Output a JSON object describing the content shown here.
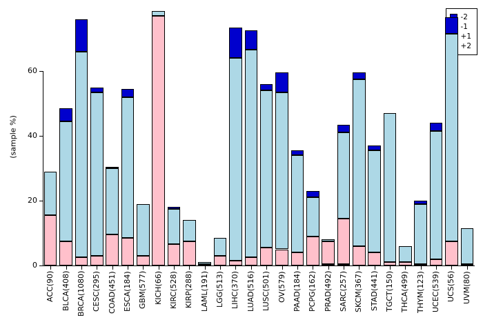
{
  "figure": {
    "ylabel": "(sample %)"
  },
  "legend": {
    "position": "top-right",
    "items": [
      {
        "label": "-2",
        "color": "#0000CD"
      },
      {
        "label": "-1",
        "color": "#ADD8E6"
      },
      {
        "label": "+1",
        "color": "#FFC0CB"
      },
      {
        "label": "+2",
        "color": "#E60000"
      }
    ]
  },
  "chart_data": {
    "type": "bar",
    "stacked": true,
    "title": "",
    "xlabel": "",
    "ylabel": "(sample %)",
    "ylim": [
      0,
      80
    ],
    "yticks": [
      0,
      20,
      40,
      60
    ],
    "grid": false,
    "legend_position": "top-right",
    "categories": [
      "ACC(90)",
      "BLCA(408)",
      "BRCA(1080)",
      "CESC(295)",
      "COAD(451)",
      "ESCA(184)",
      "GBM(577)",
      "KICH(66)",
      "KIRC(528)",
      "KIRP(288)",
      "LAML(191)",
      "LGG(513)",
      "LIHC(370)",
      "LUAD(516)",
      "LUSC(501)",
      "OV(579)",
      "PAAD(184)",
      "PCPG(162)",
      "PRAD(492)",
      "SARC(257)",
      "SKCM(367)",
      "STAD(441)",
      "TGCT(150)",
      "THCA(499)",
      "THYM(123)",
      "UCEC(539)",
      "UCS(56)",
      "UVM(80)"
    ],
    "stack_order_bottom_to_top": [
      "+2",
      "+1",
      "-1",
      "-2"
    ],
    "series": [
      {
        "name": "+2",
        "color": "#E60000",
        "values": [
          0,
          0,
          0,
          0,
          0,
          0,
          0,
          0,
          0,
          0,
          0,
          0,
          0,
          0,
          0,
          0,
          0,
          0,
          0.5,
          0.5,
          0,
          0,
          0,
          0,
          0,
          0,
          0,
          0
        ]
      },
      {
        "name": "+1",
        "color": "#FFC0CB",
        "values": [
          15.5,
          7.5,
          2.5,
          3,
          9.5,
          8.5,
          3,
          77,
          6.5,
          7.5,
          0.5,
          3,
          1.5,
          2.5,
          5.5,
          5,
          4,
          9,
          7,
          14,
          6,
          4,
          1,
          1,
          0.5,
          2,
          7.5,
          0.5
        ]
      },
      {
        "name": "-1",
        "color": "#ADD8E6",
        "values": [
          13.5,
          37,
          63.5,
          50.5,
          20.5,
          43.5,
          16,
          1.5,
          11,
          6.5,
          0.5,
          5.5,
          62.5,
          64,
          48.5,
          48.5,
          30,
          12,
          0.5,
          26.5,
          51.5,
          31.5,
          46,
          5,
          18.5,
          39.5,
          64,
          11
        ]
      },
      {
        "name": "-2",
        "color": "#0000CD",
        "values": [
          0,
          4,
          10,
          1.5,
          0.5,
          2.5,
          0,
          0,
          0.5,
          0,
          0,
          0,
          9.5,
          6,
          2,
          6,
          1.5,
          2,
          0,
          2.5,
          2,
          1.5,
          0,
          0,
          1,
          2.5,
          5,
          0
        ]
      }
    ]
  }
}
